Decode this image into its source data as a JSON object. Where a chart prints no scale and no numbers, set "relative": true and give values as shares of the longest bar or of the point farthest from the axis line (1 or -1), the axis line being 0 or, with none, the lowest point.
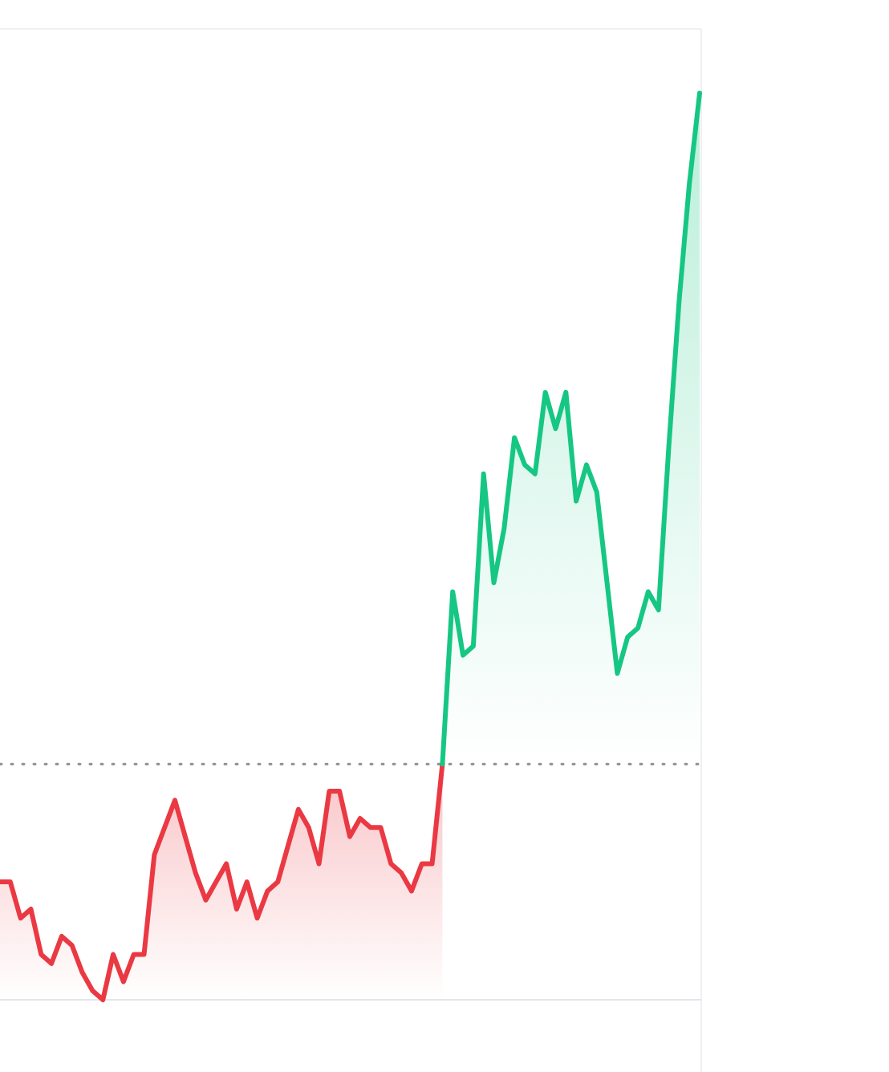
{
  "chart_data": {
    "type": "area",
    "relative": true,
    "categories": [
      null,
      null,
      null,
      null,
      null,
      null,
      null,
      null,
      null,
      null,
      null,
      null,
      null,
      null,
      null,
      null,
      null,
      null,
      null,
      null,
      null,
      null,
      null,
      null,
      null,
      null,
      null,
      null,
      null,
      null,
      null,
      null,
      null,
      null,
      null,
      null,
      null,
      null,
      null,
      null,
      null,
      null,
      null,
      null,
      null,
      null,
      null,
      null,
      null,
      null,
      null,
      null,
      null,
      null,
      null,
      null,
      null,
      null,
      null,
      null,
      null,
      null,
      null,
      null,
      null,
      null,
      null,
      null,
      null
    ],
    "series": [
      {
        "color": "#ea3943",
        "values": [
          0.13,
          0.13,
          0.09,
          0.1,
          0.05,
          0.04,
          0.07,
          0.06,
          0.03,
          0.01,
          0,
          0.05,
          0.02,
          0.05,
          0.05,
          0.16,
          0.19,
          0.22,
          0.18,
          0.14,
          0.11,
          0.13,
          0.15,
          0.1,
          0.13,
          0.09,
          0.12,
          0.13,
          0.17,
          0.21,
          0.19,
          0.15,
          0.23,
          0.23,
          0.18,
          0.2,
          0.19,
          0.19,
          0.15,
          0.14,
          0.12,
          0.15,
          0.15,
          0.26,
          null,
          null,
          null,
          null,
          null,
          null,
          null,
          null,
          null,
          null,
          null,
          null,
          null,
          null,
          null,
          null,
          null,
          null,
          null,
          null,
          null,
          null,
          null,
          null,
          null
        ]
      },
      {
        "color": "#16c784",
        "values": [
          null,
          null,
          null,
          null,
          null,
          null,
          null,
          null,
          null,
          null,
          null,
          null,
          null,
          null,
          null,
          null,
          null,
          null,
          null,
          null,
          null,
          null,
          null,
          null,
          null,
          null,
          null,
          null,
          null,
          null,
          null,
          null,
          null,
          null,
          null,
          null,
          null,
          null,
          null,
          null,
          null,
          null,
          null,
          0.26,
          0.45,
          0.38,
          0.39,
          0.58,
          0.46,
          0.52,
          0.62,
          0.59,
          0.58,
          0.67,
          0.63,
          0.67,
          0.55,
          0.59,
          0.56,
          0.46,
          0.36,
          0.4,
          0.41,
          0.45,
          0.43,
          0.61,
          0.77,
          0.9,
          1
        ]
      }
    ],
    "ref_lines": [
      {
        "axis": "y",
        "value": 0.26,
        "line_style": "dotted",
        "color": "#8a8f98"
      }
    ]
  }
}
